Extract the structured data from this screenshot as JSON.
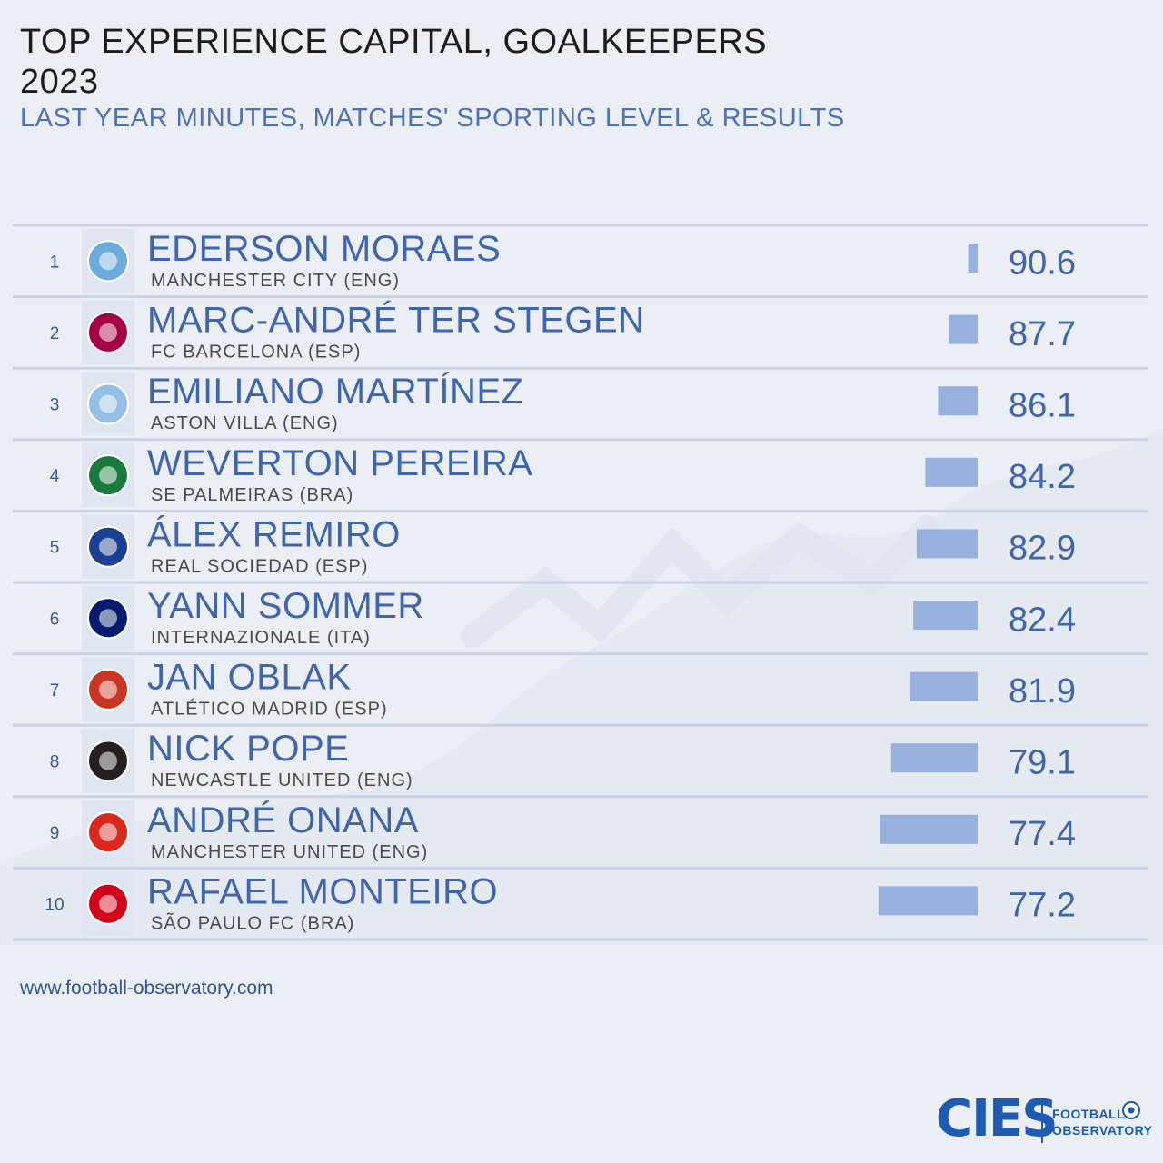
{
  "header": {
    "title": "TOP EXPERIENCE CAPITAL, GOALKEEPERS",
    "year": "2023",
    "subtitle": "LAST YEAR MINUTES, MATCHES' SPORTING LEVEL & RESULTS"
  },
  "chart_data": {
    "type": "bar",
    "orientation": "horizontal",
    "title": "TOP EXPERIENCE CAPITAL, GOALKEEPERS",
    "subtitle": "LAST YEAR MINUTES, MATCHES' SPORTING LEVEL & RESULTS",
    "xlim": [
      50,
      92
    ],
    "bar_color": "#97b0dd",
    "rows": [
      {
        "rank": "1",
        "player": "EDERSON MORAES",
        "club": "MANCHESTER CITY (ENG)",
        "value": 90.6,
        "crest": "manchester-city-crest-icon",
        "crest_color": "#6cabdd"
      },
      {
        "rank": "2",
        "player": "MARC-ANDRÉ TER STEGEN",
        "club": "FC BARCELONA (ESP)",
        "value": 87.7,
        "crest": "barcelona-crest-icon",
        "crest_color": "#a50044"
      },
      {
        "rank": "3",
        "player": "EMILIANO MARTÍNEZ",
        "club": "ASTON VILLA (ENG)",
        "value": 86.1,
        "crest": "aston-villa-crest-icon",
        "crest_color": "#95bfe5"
      },
      {
        "rank": "4",
        "player": "WEVERTON PEREIRA",
        "club": "SE PALMEIRAS (BRA)",
        "value": 84.2,
        "crest": "palmeiras-crest-icon",
        "crest_color": "#1a7a3c"
      },
      {
        "rank": "5",
        "player": "ÁLEX REMIRO",
        "club": "REAL SOCIEDAD (ESP)",
        "value": 82.9,
        "crest": "real-sociedad-crest-icon",
        "crest_color": "#1c3f94"
      },
      {
        "rank": "6",
        "player": "YANN SOMMER",
        "club": "INTERNAZIONALE (ITA)",
        "value": 82.4,
        "crest": "inter-crest-icon",
        "crest_color": "#001a6e"
      },
      {
        "rank": "7",
        "player": "JAN OBLAK",
        "club": "ATLÉTICO MADRID (ESP)",
        "value": 81.9,
        "crest": "atletico-madrid-crest-icon",
        "crest_color": "#cb3524"
      },
      {
        "rank": "8",
        "player": "NICK POPE",
        "club": "NEWCASTLE UNITED (ENG)",
        "value": 79.1,
        "crest": "newcastle-crest-icon",
        "crest_color": "#241f20"
      },
      {
        "rank": "9",
        "player": "ANDRÉ ONANA",
        "club": "MANCHESTER UNITED (ENG)",
        "value": 77.4,
        "crest": "manchester-united-crest-icon",
        "crest_color": "#da291c"
      },
      {
        "rank": "10",
        "player": "RAFAEL MONTEIRO",
        "club": "SÃO PAULO FC (BRA)",
        "value": 77.2,
        "crest": "sao-paulo-crest-icon",
        "crest_color": "#d3001c"
      }
    ]
  },
  "footer": {
    "source": "www.football-observatory.com",
    "logo_text": "CIES",
    "logo_line1": "FOOTBALL",
    "logo_line2": "OBSERVATORY"
  }
}
